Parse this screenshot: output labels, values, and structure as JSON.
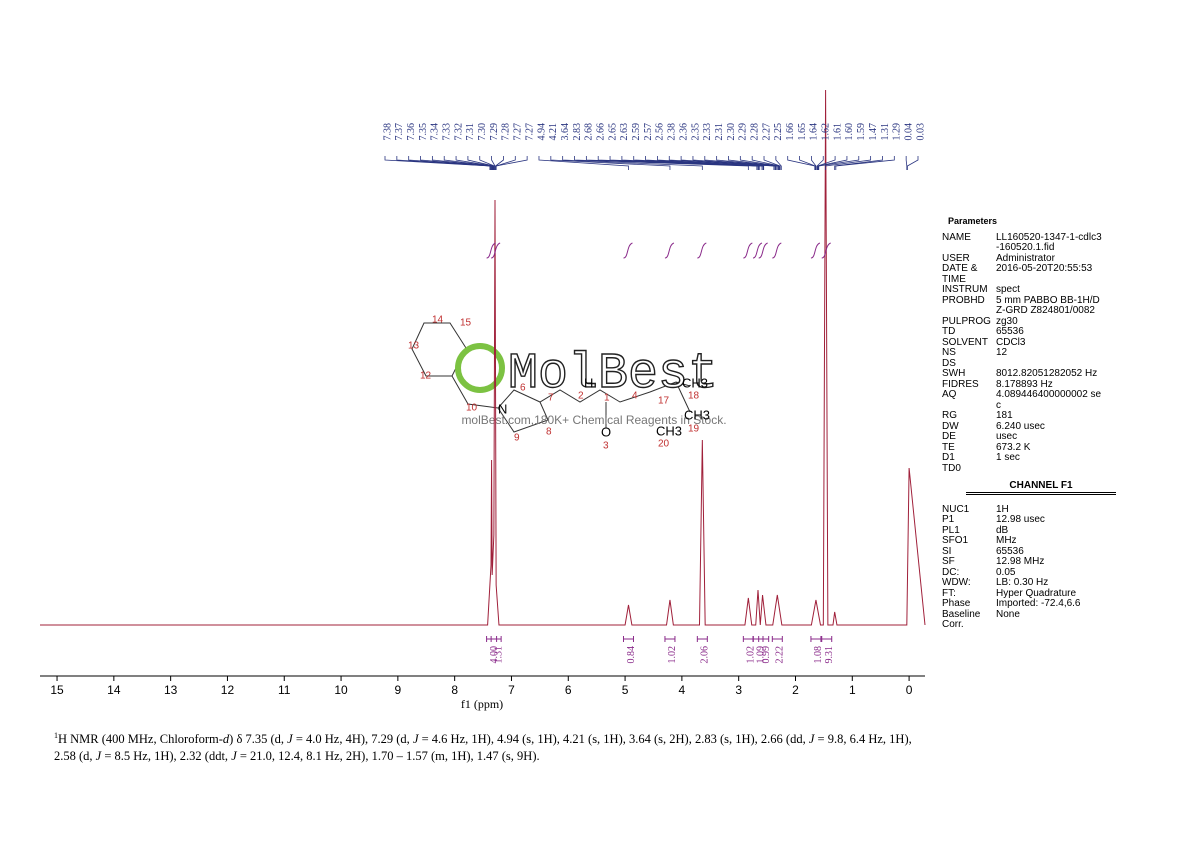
{
  "chart_data": {
    "type": "line",
    "color": "#a0203a",
    "xlabel": "f1 (ppm)",
    "xlim": [
      15.3,
      -0.28
    ],
    "xticks": [
      15,
      14,
      13,
      12,
      11,
      10,
      9,
      8,
      7,
      6,
      5,
      4,
      3,
      2,
      1,
      0
    ],
    "x": [
      15.3,
      7.42,
      7.36,
      7.35,
      7.34,
      7.31,
      7.29,
      7.27,
      7.22,
      5.0,
      4.94,
      4.88,
      4.27,
      4.21,
      4.15,
      3.69,
      3.64,
      3.59,
      2.89,
      2.83,
      2.77,
      2.7,
      2.66,
      2.62,
      2.58,
      2.52,
      2.4,
      2.32,
      2.24,
      1.72,
      1.64,
      1.56,
      1.51,
      1.47,
      1.43,
      1.34,
      1.31,
      1.27,
      0.08,
      0.04,
      0.0,
      -0.28
    ],
    "values": [
      0,
      0,
      60,
      165,
      50,
      90,
      425,
      40,
      0,
      0,
      20,
      0,
      0,
      25,
      0,
      0,
      185,
      0,
      0,
      27,
      0,
      0,
      35,
      0,
      30,
      0,
      0,
      30,
      0,
      0,
      25,
      0,
      0,
      535,
      0,
      0,
      13,
      0,
      0,
      0,
      157,
      0
    ],
    "peak_labels": [
      7.38,
      7.37,
      7.36,
      7.35,
      7.34,
      7.33,
      7.32,
      7.31,
      {
        "value": 7.3,
        "label": "7.30"
      },
      7.29,
      7.28,
      7.27,
      7.27,
      4.94,
      4.21,
      3.64,
      2.83,
      2.68,
      2.66,
      2.65,
      2.63,
      2.59,
      2.57,
      2.56,
      2.38,
      2.36,
      2.35,
      2.33,
      2.31,
      {
        "value": 2.3,
        "label": "2.30"
      },
      2.29,
      2.28,
      2.27,
      2.25,
      1.66,
      1.65,
      1.64,
      1.62,
      1.61,
      {
        "value": 1.6,
        "label": "1.60"
      },
      1.59,
      1.47,
      1.31,
      1.29,
      0.04,
      0.03
    ],
    "integrals": [
      {
        "value": 4,
        "label": "4.00",
        "x": 7.35
      },
      {
        "value": 1.31,
        "label": "1.31",
        "x": 7.27
      },
      {
        "value": 0.84,
        "label": "0.84",
        "x": 4.94
      },
      {
        "value": 1.02,
        "label": "1.02",
        "x": 4.21
      },
      {
        "value": 2.06,
        "label": "2.06",
        "x": 3.64
      },
      {
        "value": 1.02,
        "label": "1.02",
        "x": 2.83
      },
      {
        "value": 1.09,
        "label": "1.09",
        "x": 2.66
      },
      {
        "value": 0.99,
        "label": "0.99",
        "x": 2.56
      },
      {
        "value": 2.22,
        "label": "2.22",
        "x": 2.32
      },
      {
        "value": 1.08,
        "label": "1.08",
        "x": 1.64
      },
      {
        "value": 9.31,
        "label": "9.31",
        "x": 1.45
      }
    ]
  },
  "structure": {
    "labels": [
      "14",
      "15",
      "13",
      "12",
      "10",
      "N",
      "6",
      "7",
      "8",
      "9",
      "H",
      "2",
      "1",
      "4",
      "17",
      "18",
      "19",
      "20",
      "O",
      "3",
      "CH3",
      "CH3",
      "CH3"
    ]
  },
  "watermark": {
    "title": "MolBest",
    "subtitle": "molBest.com,180K+ Chemical Reagents in Stock."
  },
  "parameters": {
    "title": "Parameters",
    "rows": [
      [
        "NAME",
        "LL160520-1347-1-cdlc3-160520.1.fid"
      ],
      [
        "USER",
        "Administrator"
      ],
      [
        "DATE & TIME",
        "2016-05-20T20:55:53"
      ],
      [
        "INSTRUM",
        "spect"
      ],
      [
        "PROBHD",
        "5 mm PABBO BB-1H/D Z-GRD Z824801/0082"
      ],
      [
        "PULPROG",
        "zg30"
      ],
      [
        "TD",
        "65536"
      ],
      [
        "SOLVENT",
        "CDCl3"
      ],
      [
        "NS",
        "12"
      ],
      [
        "DS"
      ],
      [
        "SWH",
        "8012.82051282052 Hz"
      ],
      [
        "FIDRES",
        "8.178893 Hz"
      ],
      [
        "AQ",
        "4.089446400000002 sec"
      ],
      [
        "RG",
        "181"
      ],
      [
        "DW",
        "6.240 usec"
      ],
      [
        "DE",
        "usec"
      ],
      [
        "TE",
        "673.2 K"
      ],
      [
        "D1",
        "1 sec"
      ],
      [
        "TD0"
      ]
    ],
    "channel": "CHANNEL F1",
    "channel_rows": [
      [
        "NUC1",
        "1H"
      ],
      [
        "P1",
        "12.98 usec"
      ],
      [
        "PL1",
        "dB"
      ],
      [
        "SFO1",
        "MHz"
      ],
      [
        "SI",
        "65536"
      ],
      [
        "SF",
        "12.98 MHz"
      ],
      [
        "DC:",
        "0.05"
      ],
      [
        "WDW:",
        "LB: 0.30 Hz"
      ],
      [
        "FT:",
        "Hyper Quadrature"
      ],
      [
        "Phase",
        "Imported: -72.4,6.6"
      ],
      [
        "Baseline",
        "None"
      ],
      [
        "Corr."
      ]
    ]
  },
  "description": {
    "sup": "1",
    "parts": [
      "H NMR (400 MHz, Chloroform-",
      "d",
      ") δ 7.35 (d, ",
      "J",
      " = 4.0 Hz, 4H), 7.29 (d, ",
      "J",
      " = 4.6 Hz, 1H), 4.94 (s, 1H), 4.21 (s, 1H), 3.64 (s, 2H), 2.83 (s, 1H), 2.66 (dd, ",
      "J",
      " = 9.8, 6.4 Hz, 1H), 2.58 (d, ",
      "J",
      " = 8.5 Hz, 1H), 2.32 (ddt, ",
      "J",
      " = 21.0, 12.4, 8.1 Hz, 2H), 1.70 – 1.57 (m, 1H), 1.47 (s, 9H)."
    ]
  }
}
